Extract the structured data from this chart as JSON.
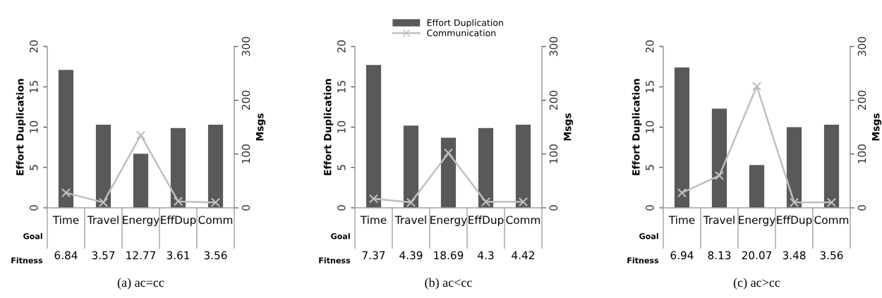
{
  "chart_data": [
    {
      "type": "bar",
      "title": "(a) ac=cc",
      "xlabel": "Goal",
      "ylabel": "Effort Duplication",
      "y2label": "Msgs",
      "categories": [
        "Time",
        "Travel",
        "Energy",
        "EffDup",
        "Comm"
      ],
      "ylim": [
        0,
        20
      ],
      "yticks": [
        0,
        5,
        10,
        15,
        20
      ],
      "y2lim": [
        0,
        300
      ],
      "y2ticks": [
        0,
        100,
        200,
        300
      ],
      "grid": false,
      "legend": false,
      "series": [
        {
          "color": "#595959",
          "values": [
            17.1,
            10.3,
            6.7,
            9.9,
            10.3
          ]
        },
        {
          "type": "line",
          "axis": "y2",
          "color": "#bfbfbf",
          "marker": "cross",
          "values": [
            28,
            10,
            135,
            12,
            10
          ]
        }
      ],
      "annotations": [
        "Fitness",
        "6.84",
        "3.57",
        "12.77",
        "3.61",
        "3.56"
      ]
    },
    {
      "type": "bar",
      "title": "(b) ac<cc",
      "xlabel": "Goal",
      "ylabel": "Effort Duplication",
      "y2label": "Msgs",
      "categories": [
        "Time",
        "Travel",
        "Energy",
        "EffDup",
        "Comm"
      ],
      "ylim": [
        0,
        20
      ],
      "yticks": [
        0,
        5,
        10,
        15,
        20
      ],
      "y2lim": [
        0,
        300
      ],
      "y2ticks": [
        0,
        100,
        200,
        300
      ],
      "grid": false,
      "legend": "top",
      "series": [
        {
          "name": "Effort Duplication",
          "color": "#595959",
          "values": [
            17.7,
            10.2,
            8.7,
            9.9,
            10.3
          ]
        },
        {
          "type": "line",
          "axis": "y2",
          "name": "Communication",
          "color": "#bfbfbf",
          "marker": "cross",
          "values": [
            17,
            10,
            102,
            11,
            11
          ]
        }
      ],
      "annotations": [
        "Fitness",
        "7.37",
        "4.39",
        "18.69",
        "4.3",
        "4.42"
      ]
    },
    {
      "type": "bar",
      "title": "(c) ac>cc",
      "xlabel": "Goal",
      "ylabel": "Effort Duplication",
      "y2label": "Msgs",
      "categories": [
        "Time",
        "Travel",
        "Energy",
        "EffDup",
        "Comm"
      ],
      "ylim": [
        0,
        20
      ],
      "yticks": [
        0,
        5,
        10,
        15,
        20
      ],
      "y2lim": [
        0,
        300
      ],
      "y2ticks": [
        0,
        100,
        200,
        300
      ],
      "grid": false,
      "legend": false,
      "series": [
        {
          "color": "#595959",
          "values": [
            17.4,
            12.3,
            5.3,
            10.0,
            10.3
          ]
        },
        {
          "type": "line",
          "axis": "y2",
          "color": "#bfbfbf",
          "marker": "cross",
          "values": [
            28,
            60,
            226,
            10,
            10
          ]
        }
      ],
      "annotations": [
        "Fitness",
        "6.94",
        "8.13",
        "20.07",
        "3.48",
        "3.56"
      ]
    }
  ]
}
